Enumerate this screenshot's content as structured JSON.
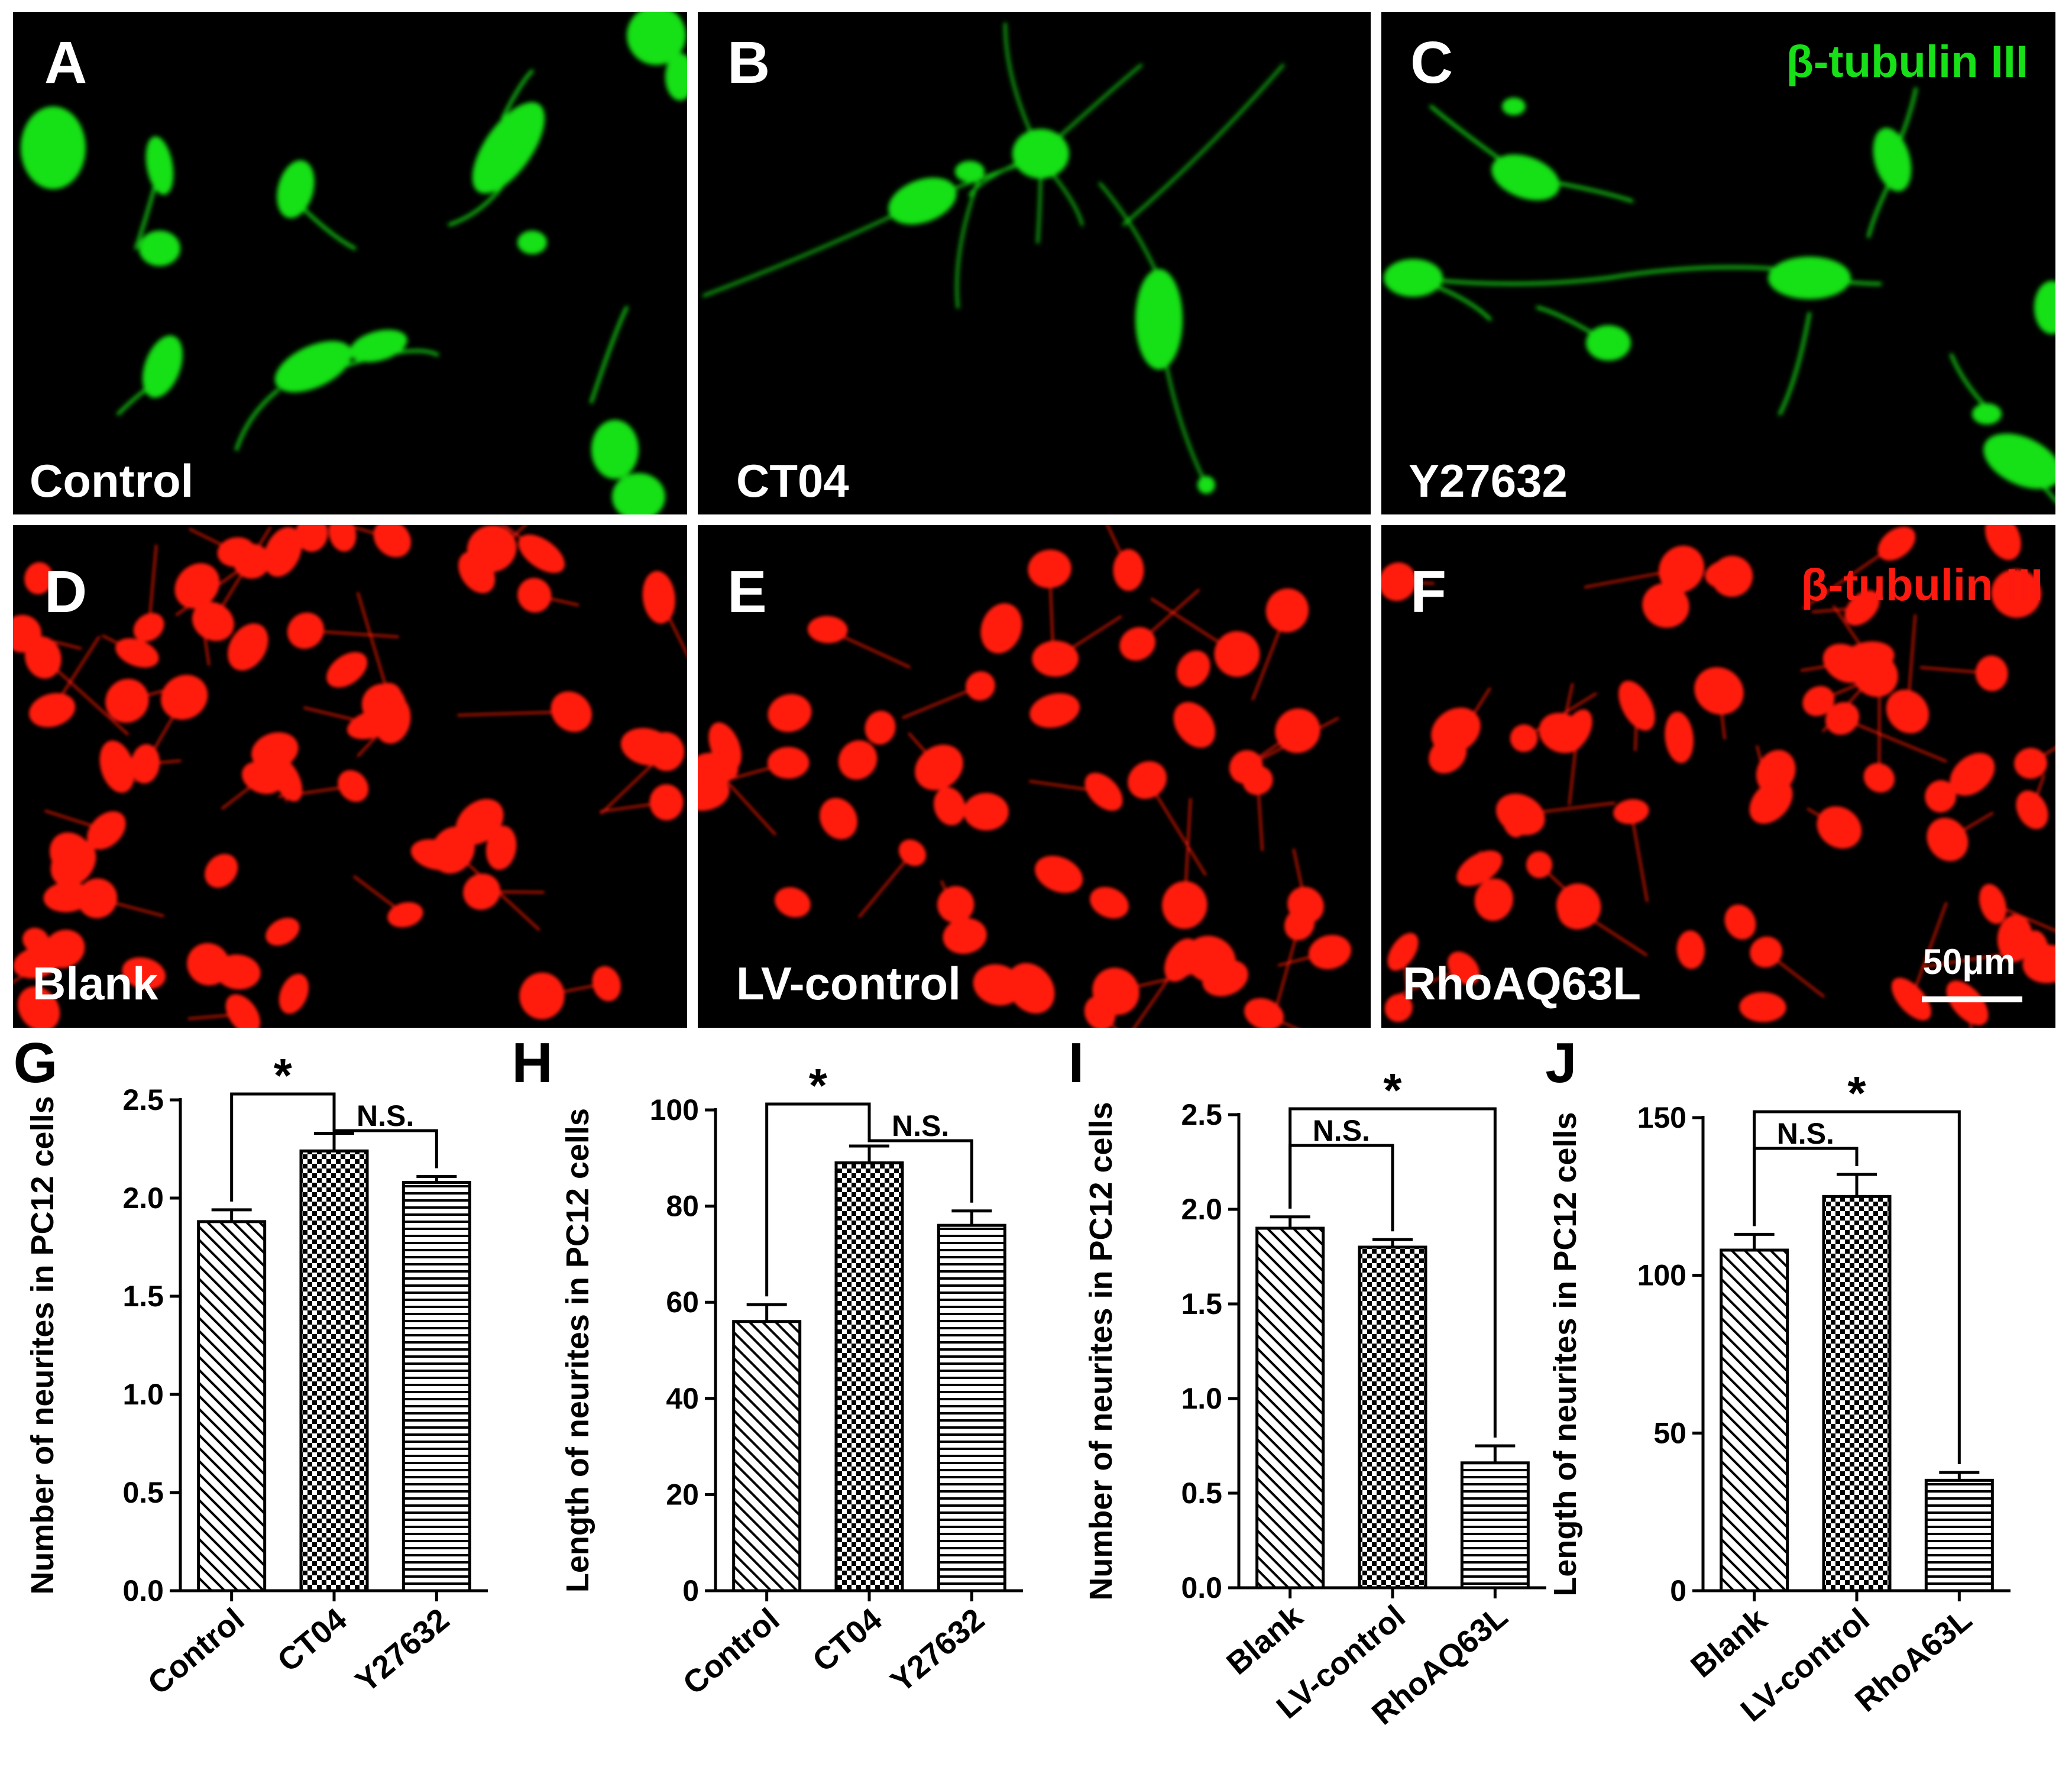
{
  "colors": {
    "green": "#18e018",
    "red": "#ff1a10",
    "panel_bg": "#000000",
    "border": "#ffffff",
    "bar_stroke": "#000000"
  },
  "panels": [
    {
      "letter": "A",
      "label": "Control",
      "stain": ""
    },
    {
      "letter": "B",
      "label": "CT04",
      "stain": ""
    },
    {
      "letter": "C",
      "label": "Y27632",
      "stain": "β-tubulin III"
    },
    {
      "letter": "D",
      "label": "Blank",
      "stain": ""
    },
    {
      "letter": "E",
      "label": "LV-control",
      "stain": ""
    },
    {
      "letter": "F",
      "label": "RhoAQ63L",
      "stain": "β-tubulin III"
    }
  ],
  "scale_bar": {
    "label": "50μm"
  },
  "chart_data": [
    {
      "panel": "G",
      "type": "bar",
      "ylabel": "Number of neurites in PC12 cells",
      "ylim": [
        0,
        2.5
      ],
      "yticks": [
        "0.0",
        "0.5",
        "1.0",
        "1.5",
        "2.0",
        "2.5"
      ],
      "categories": [
        "Control",
        "CT04",
        "Y27632"
      ],
      "values": [
        1.88,
        2.24,
        2.08
      ],
      "errors": [
        0.06,
        0.09,
        0.03
      ],
      "patterns": [
        "diag",
        "check",
        "horiz"
      ],
      "brackets": [
        {
          "from": 0,
          "to": 1,
          "label": "*"
        },
        {
          "from": 1,
          "to": 2,
          "label": "N.S."
        }
      ]
    },
    {
      "panel": "H",
      "type": "bar",
      "ylabel": "Length of neurites in PC12 cells",
      "ylim": [
        0,
        100
      ],
      "yticks": [
        "0",
        "20",
        "40",
        "60",
        "80",
        "100"
      ],
      "categories": [
        "Control",
        "CT04",
        "Y27632"
      ],
      "values": [
        56,
        89,
        76
      ],
      "errors": [
        3.5,
        3.5,
        3
      ],
      "patterns": [
        "diag",
        "check",
        "horiz"
      ],
      "brackets": [
        {
          "from": 0,
          "to": 1,
          "label": "*"
        },
        {
          "from": 1,
          "to": 2,
          "label": "N.S."
        }
      ]
    },
    {
      "panel": "I",
      "type": "bar",
      "ylabel": "Number of neurites in PC12 cells",
      "ylim": [
        0,
        2.5
      ],
      "yticks": [
        "0.0",
        "0.5",
        "1.0",
        "1.5",
        "2.0",
        "2.5"
      ],
      "categories": [
        "Blank",
        "LV-control",
        "RhoAQ63L"
      ],
      "values": [
        1.9,
        1.8,
        0.66
      ],
      "errors": [
        0.06,
        0.04,
        0.09
      ],
      "patterns": [
        "diag",
        "check",
        "horiz"
      ],
      "brackets": [
        {
          "from": 0,
          "to": 2,
          "label": "*"
        },
        {
          "from": 0,
          "to": 1,
          "label": "N.S."
        }
      ]
    },
    {
      "panel": "J",
      "type": "bar",
      "ylabel": "Length of neurites in PC12 cells",
      "ylim": [
        0,
        150
      ],
      "yticks": [
        "0",
        "50",
        "100",
        "150"
      ],
      "categories": [
        "Blank",
        "LV-control",
        "RhoA63L"
      ],
      "values": [
        108,
        125,
        35
      ],
      "errors": [
        5,
        7,
        2.5
      ],
      "patterns": [
        "diag",
        "check",
        "horiz"
      ],
      "brackets": [
        {
          "from": 0,
          "to": 2,
          "label": "*"
        },
        {
          "from": 0,
          "to": 1,
          "label": "N.S."
        }
      ]
    }
  ]
}
